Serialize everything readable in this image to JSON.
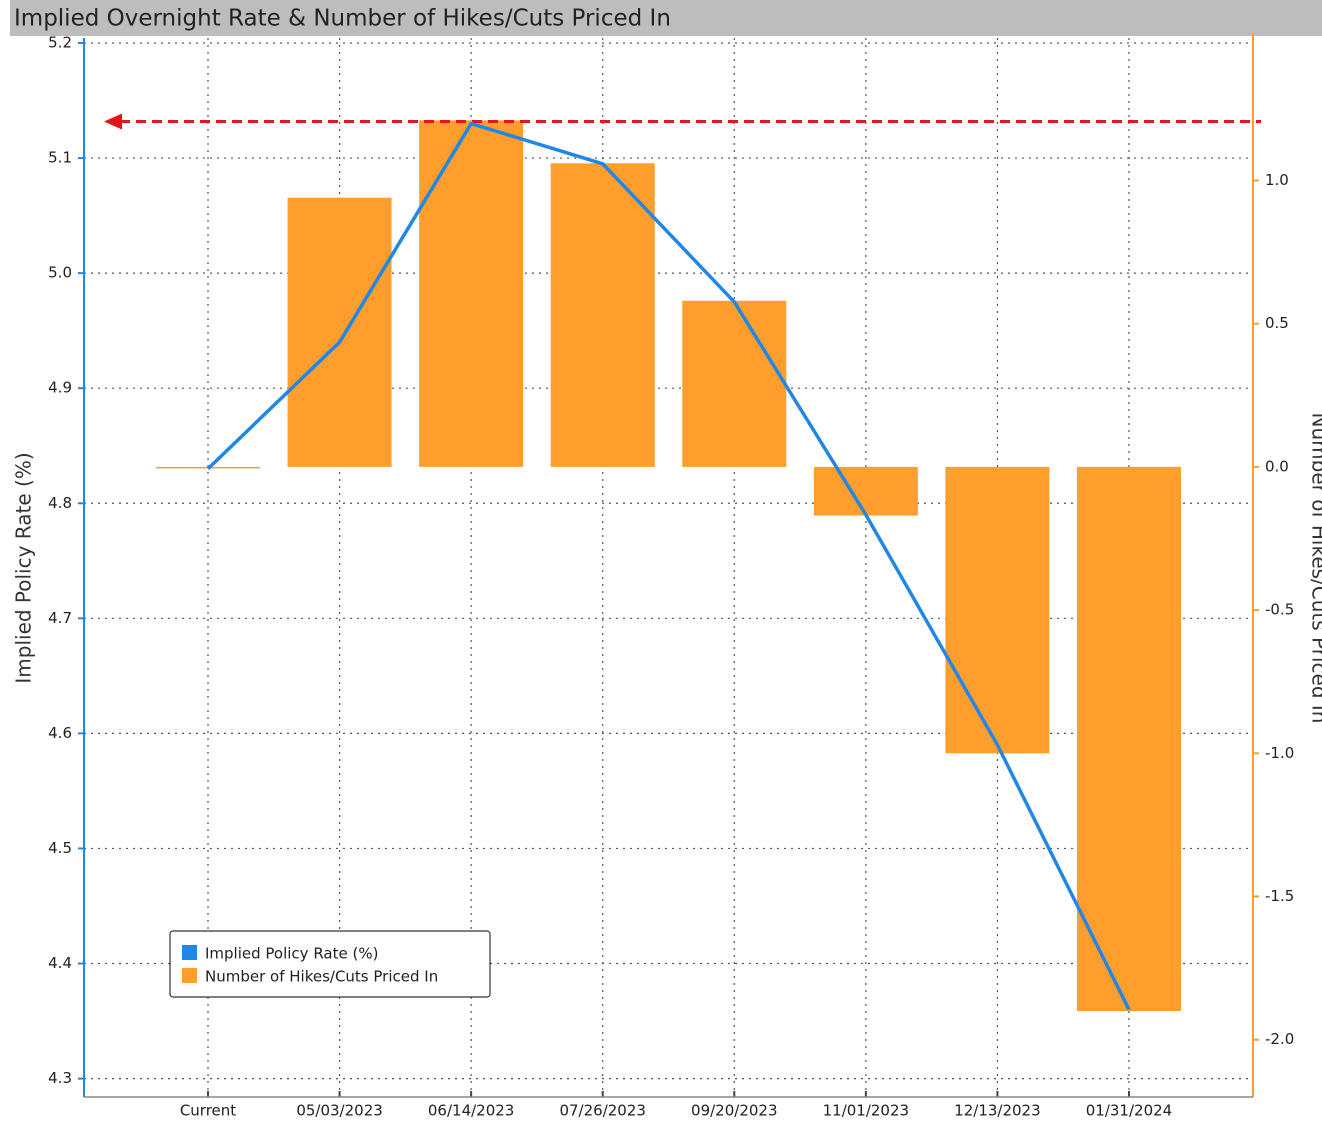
{
  "chart_data": {
    "type": "bar_line",
    "title": "Implied Overnight Rate & Number of Hikes/Cuts Priced In",
    "categories": [
      "Current",
      "05/03/2023",
      "06/14/2023",
      "07/26/2023",
      "09/20/2023",
      "11/01/2023",
      "12/13/2023",
      "01/31/2024"
    ],
    "series": [
      {
        "name": "Implied Policy Rate (%)",
        "color": "#2187e7",
        "type": "line",
        "axis": "y",
        "values": [
          4.83,
          4.94,
          5.13,
          5.095,
          4.975,
          4.79,
          4.59,
          4.36
        ]
      },
      {
        "name": "Number of Hikes/Cuts Priced In",
        "color": "#ff9e2c",
        "type": "bar",
        "axis": "y2",
        "values": [
          0.0,
          0.94,
          1.21,
          1.06,
          0.58,
          -0.17,
          -1.0,
          -1.9
        ]
      }
    ],
    "ylabel": "Implied Policy Rate (%)",
    "y2label": "Number of Hikes/Cuts Priced In",
    "ylim": [
      4.284,
      5.2
    ],
    "yticks": [
      4.3,
      4.4,
      4.5,
      4.6,
      4.7,
      4.8,
      4.9,
      {
        "value": 5,
        "label": "5.0"
      },
      5.1,
      5.2
    ],
    "y2lim": [
      -2.2,
      1.48
    ],
    "y2ticks": [
      {
        "value": -2,
        "label": "-2.0"
      },
      -1.5,
      {
        "value": -1,
        "label": "-1.0"
      },
      -0.5,
      {
        "value": 0,
        "label": "0.0"
      },
      0.5,
      {
        "value": 1,
        "label": "1.0"
      }
    ],
    "grid": true,
    "legend": "lower left"
  }
}
